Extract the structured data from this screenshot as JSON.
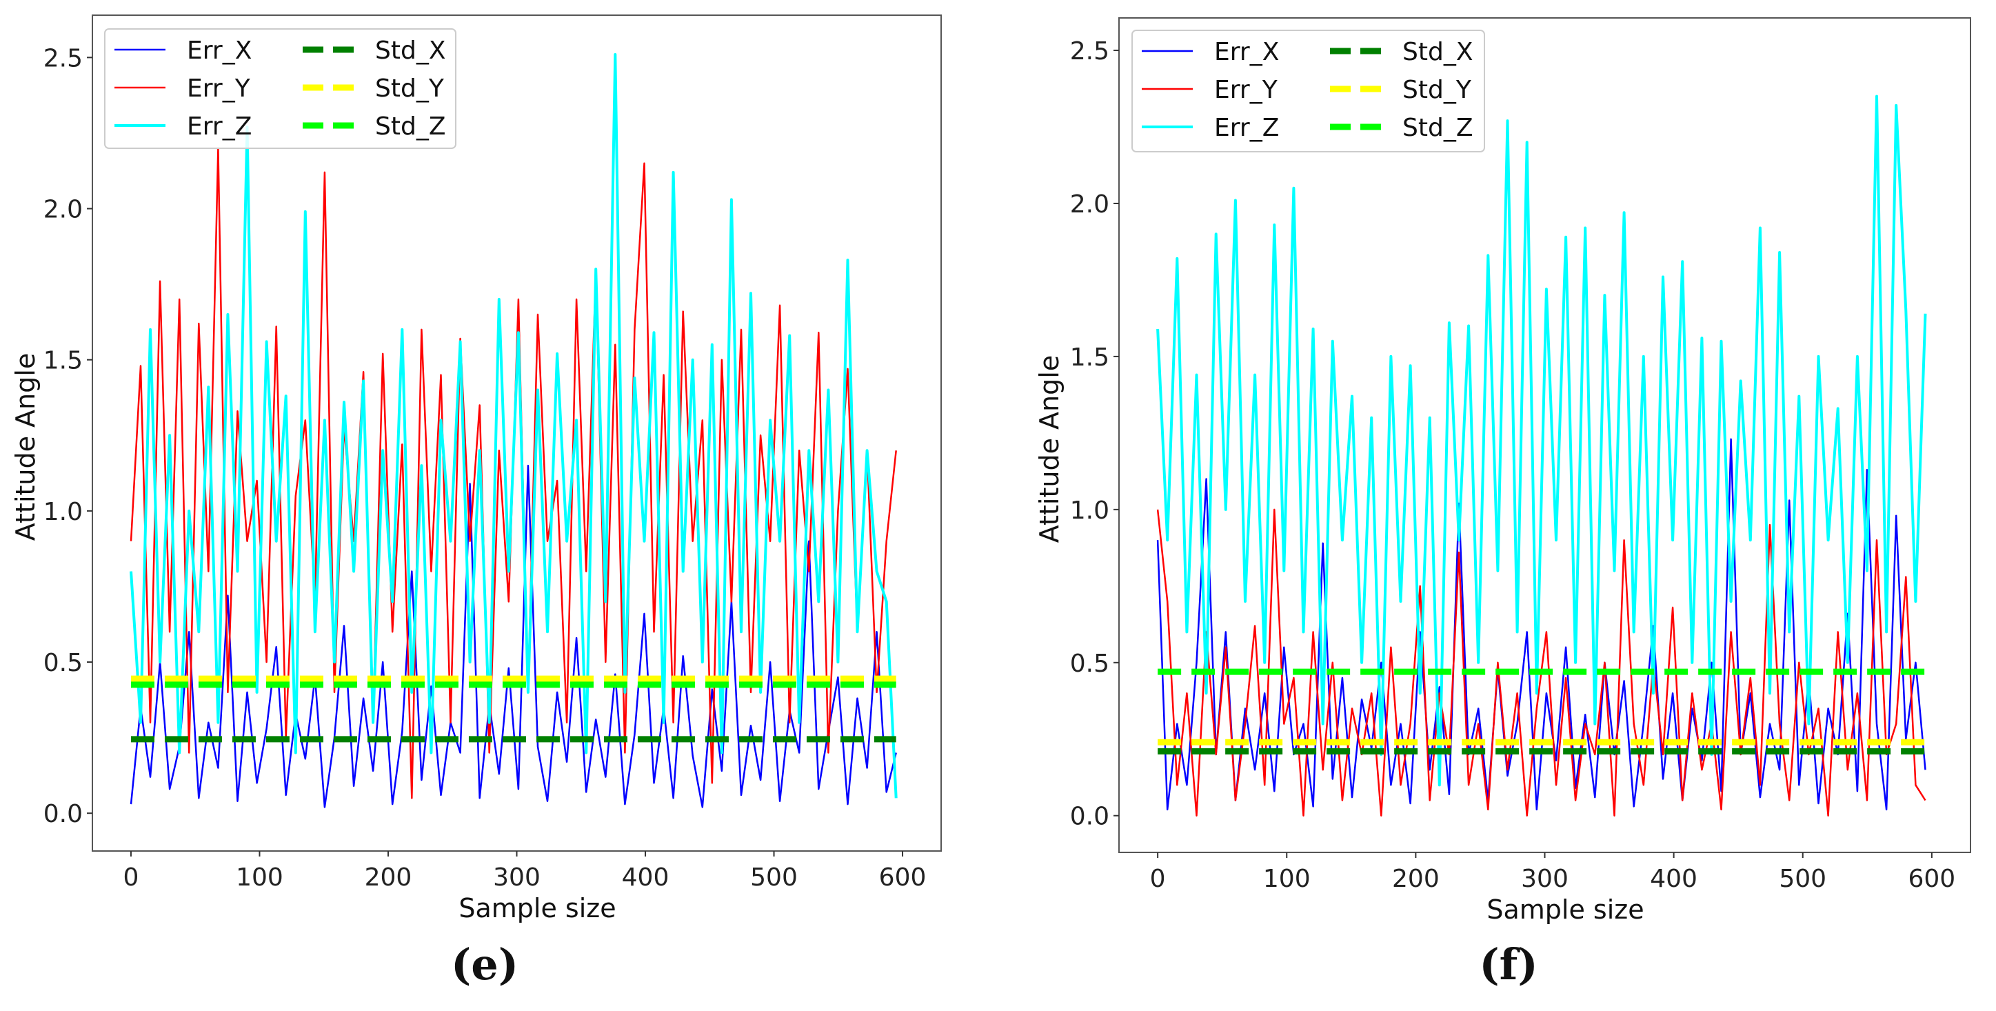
{
  "chart_data": [
    {
      "type": "line",
      "panel_label": "(e)",
      "xlabel": "Sample size",
      "ylabel": "Attitude Angle",
      "xlim": [
        -30,
        630
      ],
      "ylim": [
        -0.125,
        2.64
      ],
      "xticks": [
        "0",
        "100",
        "200",
        "300",
        "400",
        "500",
        "600"
      ],
      "yticks": [
        "0.0",
        "0.5",
        "1.0",
        "1.5",
        "2.0",
        "2.5"
      ],
      "grid": false,
      "legend_position": "top-left",
      "x_range": [
        0,
        595
      ],
      "series": [
        {
          "name": "Err_X",
          "color": "#0000ff",
          "style": "solid",
          "values": [
            0.03,
            0.35,
            0.12,
            0.5,
            0.08,
            0.22,
            0.6,
            0.05,
            0.3,
            0.15,
            0.72,
            0.04,
            0.4,
            0.1,
            0.28,
            0.55,
            0.06,
            0.33,
            0.18,
            0.45,
            0.02,
            0.25,
            0.62,
            0.09,
            0.38,
            0.14,
            0.5,
            0.03,
            0.27,
            0.8,
            0.11,
            0.42,
            0.06,
            0.3,
            0.2,
            1.09,
            0.05,
            0.36,
            0.13,
            0.48,
            0.08,
            1.15,
            0.22,
            0.04,
            0.4,
            0.17,
            0.58,
            0.07,
            0.31,
            0.12,
            0.46,
            0.03,
            0.26,
            0.66,
            0.1,
            0.35,
            0.05,
            0.52,
            0.19,
            0.02,
            0.41,
            0.14,
            0.7,
            0.06,
            0.29,
            0.11,
            0.5,
            0.04,
            0.34,
            0.2,
            0.9,
            0.08,
            0.27,
            0.45,
            0.03,
            0.38,
            0.15,
            0.6,
            0.07,
            0.2
          ]
        },
        {
          "name": "Err_Y",
          "color": "#ff0000",
          "style": "solid",
          "values": [
            0.9,
            1.48,
            0.3,
            1.76,
            0.6,
            1.7,
            0.2,
            1.62,
            0.8,
            2.2,
            0.4,
            1.33,
            0.9,
            1.1,
            0.5,
            1.61,
            0.25,
            1.05,
            1.3,
            0.7,
            2.12,
            0.4,
            1.28,
            0.9,
            1.46,
            0.3,
            1.52,
            0.6,
            1.22,
            0.05,
            1.6,
            0.8,
            1.45,
            0.3,
            1.57,
            0.9,
            1.35,
            0.2,
            1.2,
            0.7,
            1.7,
            0.4,
            1.65,
            0.9,
            1.1,
            0.3,
            1.7,
            0.8,
            1.79,
            0.5,
            1.55,
            0.2,
            1.6,
            2.15,
            0.6,
            1.45,
            0.3,
            1.66,
            0.9,
            1.3,
            0.1,
            1.5,
            0.7,
            1.6,
            0.4,
            1.25,
            0.9,
            1.68,
            0.3,
            1.2,
            0.8,
            1.59,
            0.2,
            1.0,
            1.47,
            0.6,
            1.2,
            0.4,
            0.9,
            1.2
          ]
        },
        {
          "name": "Err_Z",
          "color": "#00ffff",
          "style": "solid",
          "values": [
            0.8,
            0.3,
            1.6,
            0.5,
            1.25,
            0.2,
            1.0,
            0.6,
            1.41,
            0.3,
            1.65,
            0.8,
            2.27,
            0.4,
            1.56,
            0.9,
            1.38,
            0.2,
            1.99,
            0.6,
            1.3,
            0.5,
            1.36,
            0.8,
            1.43,
            0.3,
            1.2,
            0.7,
            1.6,
            0.4,
            1.15,
            0.2,
            1.3,
            0.9,
            1.56,
            0.5,
            1.2,
            0.3,
            1.7,
            0.8,
            1.59,
            0.4,
            1.4,
            0.6,
            1.52,
            0.9,
            1.3,
            0.2,
            1.8,
            0.7,
            2.51,
            0.4,
            1.44,
            0.9,
            1.59,
            0.3,
            2.12,
            0.8,
            1.5,
            0.5,
            1.55,
            0.2,
            2.03,
            0.6,
            1.72,
            0.4,
            1.3,
            0.9,
            1.58,
            0.3,
            1.2,
            0.7,
            1.4,
            0.5,
            1.83,
            0.6,
            1.2,
            0.8,
            0.7,
            0.05
          ]
        },
        {
          "name": "Std_X",
          "color": "#008000",
          "style": "dashed",
          "constant": 0.245
        },
        {
          "name": "Std_Y",
          "color": "#ffff00",
          "style": "dashed",
          "constant": 0.445
        },
        {
          "name": "Std_Z",
          "color": "#00ff00",
          "style": "dashed",
          "constant": 0.425
        }
      ]
    },
    {
      "type": "line",
      "panel_label": "(f)",
      "xlabel": "Sample size",
      "ylabel": "Attitude Angle",
      "xlim": [
        -30,
        630
      ],
      "ylim": [
        -0.12,
        2.606
      ],
      "xticks": [
        "0",
        "100",
        "200",
        "300",
        "400",
        "500",
        "600"
      ],
      "yticks": [
        "0.0",
        "0.5",
        "1.0",
        "1.5",
        "2.0",
        "2.5"
      ],
      "grid": false,
      "legend_position": "top-left",
      "x_range": [
        0,
        595
      ],
      "series": [
        {
          "name": "Err_X",
          "color": "#0000ff",
          "style": "solid",
          "values": [
            0.9,
            0.02,
            0.3,
            0.1,
            0.5,
            1.1,
            0.2,
            0.6,
            0.05,
            0.35,
            0.15,
            0.4,
            0.08,
            0.55,
            0.2,
            0.3,
            0.03,
            0.89,
            0.12,
            0.45,
            0.06,
            0.38,
            0.22,
            0.5,
            0.1,
            0.3,
            0.04,
            0.6,
            0.15,
            0.42,
            0.07,
            1.02,
            0.2,
            0.35,
            0.05,
            0.48,
            0.13,
            0.3,
            0.6,
            0.02,
            0.4,
            0.18,
            0.55,
            0.09,
            0.33,
            0.06,
            0.5,
            0.2,
            0.44,
            0.03,
            0.3,
            0.62,
            0.12,
            0.4,
            0.05,
            0.35,
            0.18,
            0.5,
            0.08,
            1.23,
            0.2,
            0.4,
            0.06,
            0.3,
            0.15,
            1.03,
            0.1,
            0.45,
            0.04,
            0.35,
            0.2,
            0.66,
            0.08,
            1.13,
            0.3,
            0.02,
            0.98,
            0.25,
            0.5,
            0.15
          ]
        },
        {
          "name": "Err_Y",
          "color": "#ff0000",
          "style": "solid",
          "values": [
            1.0,
            0.7,
            0.1,
            0.4,
            0.0,
            0.6,
            0.2,
            0.55,
            0.05,
            0.3,
            0.62,
            0.1,
            1.0,
            0.3,
            0.45,
            0.0,
            0.6,
            0.15,
            0.5,
            0.05,
            0.35,
            0.2,
            0.4,
            0.0,
            0.55,
            0.1,
            0.3,
            0.75,
            0.05,
            0.4,
            0.2,
            0.86,
            0.1,
            0.3,
            0.02,
            0.5,
            0.15,
            0.4,
            0.0,
            0.35,
            0.6,
            0.1,
            0.45,
            0.05,
            0.3,
            0.2,
            0.5,
            0.0,
            0.9,
            0.3,
            0.1,
            0.5,
            0.2,
            0.68,
            0.05,
            0.4,
            0.15,
            0.3,
            0.02,
            0.6,
            0.2,
            0.45,
            0.1,
            0.95,
            0.3,
            0.05,
            0.5,
            0.2,
            0.35,
            0.0,
            0.6,
            0.15,
            0.4,
            0.05,
            0.9,
            0.2,
            0.3,
            0.78,
            0.1,
            0.05
          ]
        },
        {
          "name": "Err_Z",
          "color": "#00ffff",
          "style": "solid",
          "values": [
            1.59,
            0.9,
            1.82,
            0.6,
            1.44,
            0.4,
            1.9,
            1.0,
            2.01,
            0.7,
            1.44,
            0.5,
            1.93,
            0.8,
            2.05,
            0.6,
            1.59,
            0.3,
            1.55,
            0.9,
            1.37,
            0.5,
            1.3,
            0.2,
            1.5,
            0.7,
            1.47,
            0.4,
            1.3,
            0.1,
            1.61,
            0.9,
            1.6,
            0.5,
            1.83,
            0.8,
            2.27,
            0.6,
            2.2,
            0.4,
            1.72,
            0.9,
            1.89,
            0.5,
            1.92,
            0.3,
            1.7,
            0.8,
            1.97,
            0.6,
            1.5,
            0.4,
            1.76,
            0.9,
            1.81,
            0.5,
            1.56,
            0.2,
            1.55,
            0.7,
            1.42,
            0.9,
            1.92,
            0.4,
            1.84,
            0.6,
            1.37,
            0.3,
            1.5,
            0.9,
            1.33,
            0.5,
            1.5,
            0.8,
            2.35,
            0.6,
            2.32,
            1.65,
            0.7,
            1.64
          ]
        },
        {
          "name": "Std_X",
          "color": "#008000",
          "style": "dashed",
          "constant": 0.21
        },
        {
          "name": "Std_Y",
          "color": "#ffff00",
          "style": "dashed",
          "constant": 0.24
        },
        {
          "name": "Std_Z",
          "color": "#00ff00",
          "style": "dashed",
          "constant": 0.47
        }
      ]
    }
  ]
}
